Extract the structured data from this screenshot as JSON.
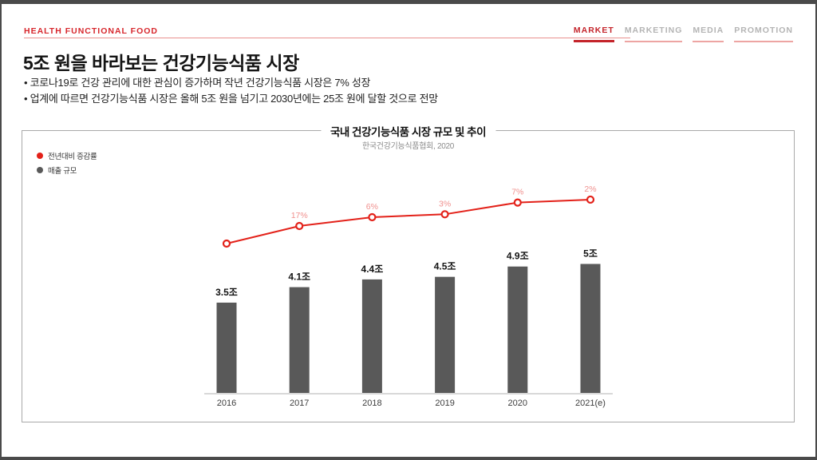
{
  "header": {
    "brand": "HEALTH FUNCTIONAL FOOD",
    "nav": [
      {
        "label": "MARKET",
        "active": true
      },
      {
        "label": "MARKETING",
        "active": false
      },
      {
        "label": "MEDIA",
        "active": false
      },
      {
        "label": "PROMOTION",
        "active": false
      }
    ]
  },
  "title": "5조 원을 바라보는 건강기능식품 시장",
  "bullets": [
    "• 코로나19로 건강 관리에 대한 관심이 증가하며 작년 건강기능식품 시장은 7% 성장",
    "• 업계에 따르면 건강기능식품 시장은 올해 5조 원을 넘기고 2030년에는 25조 원에 달할 것으로 전망"
  ],
  "chart": {
    "title": "국내 건강기능식품 시장 규모 및 추이",
    "source": "한국건강기능식품협회, 2020",
    "legend": [
      {
        "label": "전년대비 증감률",
        "color": "#e32119"
      },
      {
        "label": "매출 규모",
        "color": "#595959"
      }
    ]
  },
  "chart_data": {
    "type": "bar",
    "title": "국내 건강기능식품 시장 규모 및 추이",
    "subtitle": "한국건강기능식품협회, 2020",
    "categories": [
      "2016",
      "2017",
      "2018",
      "2019",
      "2020",
      "2021(e)"
    ],
    "series": [
      {
        "name": "매출 규모",
        "type": "bar",
        "unit": "조 원",
        "values": [
          3.5,
          4.1,
          4.4,
          4.5,
          4.9,
          5.0
        ],
        "labels": [
          "3.5조",
          "4.1조",
          "4.4조",
          "4.5조",
          "4.9조",
          "5조"
        ],
        "color": "#595959"
      },
      {
        "name": "전년대비 증감률",
        "type": "line",
        "unit": "%",
        "values": [
          null,
          17,
          6,
          3,
          7,
          2
        ],
        "labels": [
          "",
          "17%",
          "6%",
          "3%",
          "7%",
          "2%"
        ],
        "color": "#e32119"
      }
    ],
    "legend_position": "top-left",
    "grid": false,
    "ylim": [
      0,
      5.5
    ]
  },
  "colors": {
    "accent_red": "#e32119",
    "light_red": "#f0908e",
    "dark_red": "#c4242b",
    "bar_gray": "#595959",
    "nav_inactive": "#b4b4b4",
    "frame_dark": "#4a4a4a",
    "box_border": "#a9a9a9",
    "axis_gray": "#d8d8d8"
  }
}
